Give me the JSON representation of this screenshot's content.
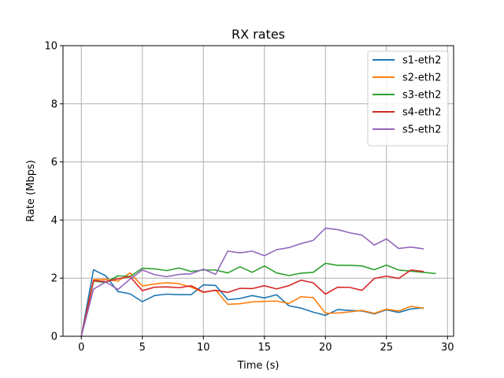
{
  "chart_data": {
    "type": "line",
    "title": "RX rates",
    "xlabel": "Time (s)",
    "ylabel": "Rate (Mbps)",
    "xlim": [
      -1.5,
      30.5
    ],
    "ylim": [
      0,
      10
    ],
    "xticks": [
      0,
      5,
      10,
      15,
      20,
      25,
      30
    ],
    "yticks": [
      0,
      2,
      4,
      6,
      8,
      10
    ],
    "grid": true,
    "legend_position": "top-right",
    "series": [
      {
        "name": "s1-eth2",
        "color": "#1f77b4",
        "x": [
          0,
          1,
          2,
          3,
          4,
          5,
          6,
          7,
          8,
          9,
          10,
          11,
          12,
          13,
          14,
          15,
          16,
          17,
          18,
          19,
          20,
          21,
          22,
          23,
          24,
          25,
          26,
          27,
          28
        ],
        "y": [
          0,
          2.29,
          2.08,
          1.54,
          1.46,
          1.19,
          1.4,
          1.45,
          1.43,
          1.43,
          1.77,
          1.75,
          1.26,
          1.3,
          1.4,
          1.32,
          1.43,
          1.05,
          0.97,
          0.83,
          0.72,
          0.92,
          0.89,
          0.87,
          0.77,
          0.91,
          0.82,
          0.94,
          0.98
        ]
      },
      {
        "name": "s2-eth2",
        "color": "#ff7f0e",
        "x": [
          0,
          1,
          2,
          3,
          4,
          5,
          6,
          7,
          8,
          9,
          10,
          11,
          12,
          13,
          14,
          15,
          16,
          17,
          18,
          19,
          20,
          21,
          22,
          23,
          24,
          25,
          26,
          27,
          28
        ],
        "y": [
          0,
          1.95,
          1.96,
          1.9,
          2.18,
          1.73,
          1.8,
          1.84,
          1.81,
          1.69,
          1.51,
          1.59,
          1.1,
          1.12,
          1.18,
          1.2,
          1.21,
          1.13,
          1.36,
          1.33,
          0.79,
          0.8,
          0.84,
          0.89,
          0.79,
          0.93,
          0.87,
          1.03,
          0.97
        ]
      },
      {
        "name": "s3-eth2",
        "color": "#2ca02c",
        "x": [
          0,
          1,
          2,
          3,
          4,
          5,
          6,
          7,
          8,
          9,
          10,
          11,
          12,
          13,
          14,
          15,
          16,
          17,
          18,
          19,
          20,
          21,
          22,
          23,
          24,
          25,
          26,
          27,
          28,
          29
        ],
        "y": [
          0,
          1.9,
          1.85,
          2.08,
          2.06,
          2.34,
          2.32,
          2.26,
          2.35,
          2.23,
          2.28,
          2.28,
          2.18,
          2.39,
          2.2,
          2.42,
          2.18,
          2.09,
          2.17,
          2.2,
          2.51,
          2.44,
          2.44,
          2.42,
          2.29,
          2.45,
          2.28,
          2.24,
          2.2,
          2.16
        ]
      },
      {
        "name": "s4-eth2",
        "color": "#d62728",
        "x": [
          0,
          1,
          2,
          3,
          4,
          5,
          6,
          7,
          8,
          9,
          10,
          11,
          12,
          13,
          14,
          15,
          16,
          17,
          18,
          19,
          20,
          21,
          22,
          23,
          24,
          25,
          26,
          27,
          28
        ],
        "y": [
          0,
          1.92,
          1.88,
          1.98,
          2.05,
          1.57,
          1.69,
          1.7,
          1.67,
          1.74,
          1.52,
          1.58,
          1.51,
          1.65,
          1.64,
          1.74,
          1.63,
          1.74,
          1.93,
          1.84,
          1.45,
          1.69,
          1.68,
          1.58,
          1.99,
          2.07,
          1.99,
          2.28,
          2.23
        ]
      },
      {
        "name": "s5-eth2",
        "color": "#9467bd",
        "x": [
          0,
          1,
          2,
          3,
          4,
          5,
          6,
          7,
          8,
          9,
          10,
          11,
          12,
          13,
          14,
          15,
          16,
          17,
          18,
          19,
          20,
          21,
          22,
          23,
          24,
          25,
          26,
          27,
          28
        ],
        "y": [
          0,
          1.62,
          1.87,
          1.61,
          1.97,
          2.28,
          2.12,
          2.05,
          2.13,
          2.15,
          2.31,
          2.13,
          2.93,
          2.87,
          2.93,
          2.77,
          2.98,
          3.05,
          3.19,
          3.3,
          3.72,
          3.67,
          3.56,
          3.48,
          3.14,
          3.35,
          3.02,
          3.07,
          3.01
        ]
      }
    ]
  }
}
